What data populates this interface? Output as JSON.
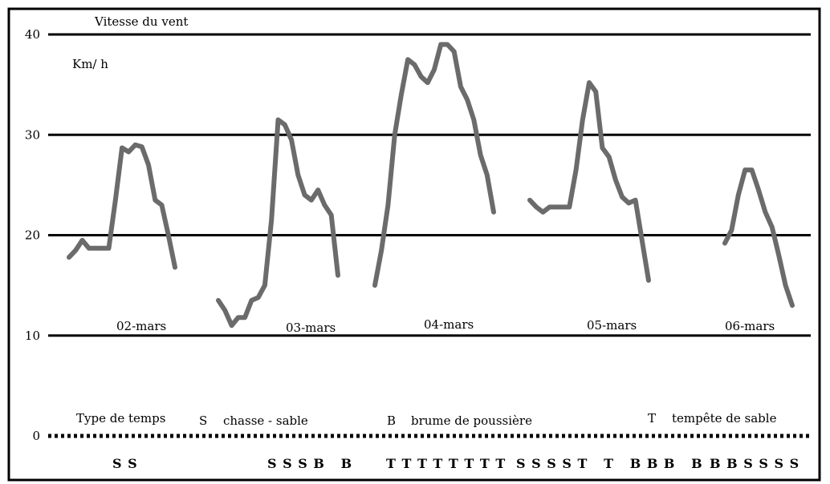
{
  "chart_data": {
    "type": "line",
    "title": "",
    "ylabel": "Vitesse du vent",
    "yunit": "Km/ h",
    "ylim": [
      0,
      40
    ],
    "yticks": [
      "0",
      "10",
      "20",
      "30",
      "40"
    ],
    "grid": true,
    "series_color": "#6b6b6b",
    "days": [
      {
        "label": "02-mars",
        "values": [
          17.8,
          18.5,
          19.5,
          18.7,
          18.7,
          18.7,
          18.7,
          23.5,
          28.7,
          28.3,
          29.0,
          28.8,
          27.0,
          23.5,
          23.0,
          20.0,
          16.8
        ]
      },
      {
        "label": "03-mars",
        "values": [
          13.5,
          12.5,
          11.0,
          11.8,
          11.8,
          13.5,
          13.8,
          15.0,
          21.5,
          31.5,
          31.0,
          29.5,
          26.0,
          24.0,
          23.5,
          24.5,
          23.0,
          22.0,
          16.0
        ]
      },
      {
        "label": "04-mars",
        "values": [
          15.0,
          18.5,
          23.0,
          30.0,
          34.0,
          37.5,
          37.0,
          35.8,
          35.2,
          36.5,
          39.0,
          39.0,
          38.3,
          34.8,
          33.5,
          31.5,
          28.0,
          26.0,
          22.3
        ]
      },
      {
        "label": "05-mars",
        "values": [
          23.5,
          22.8,
          22.3,
          22.8,
          22.8,
          22.8,
          22.8,
          26.5,
          31.5,
          35.2,
          34.3,
          28.7,
          27.8,
          25.5,
          23.8,
          23.2,
          23.5,
          19.5,
          15.5
        ]
      },
      {
        "label": "06-mars",
        "values": [
          19.2,
          20.5,
          24.0,
          26.5,
          26.5,
          24.5,
          22.3,
          20.8,
          18.0,
          15.0,
          13.0
        ]
      }
    ],
    "weather_legend": {
      "title": "Type de temps",
      "items": [
        {
          "code": "S",
          "text": "chasse - sable"
        },
        {
          "code": "B",
          "text": "brume de poussière"
        },
        {
          "code": "T",
          "text": "tempête de sable"
        }
      ]
    },
    "weather_codes": [
      "S S",
      "S S S B   B",
      "T T T T T T T T",
      "S S S S T   T   B B B   B",
      "B B S S S S"
    ]
  }
}
